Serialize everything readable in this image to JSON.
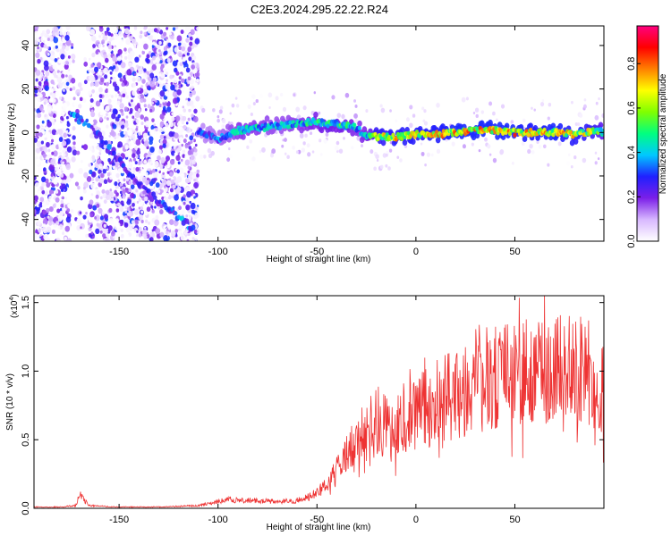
{
  "title": "C2E3.2024.295.22.22.R24",
  "chart_data": [
    {
      "type": "heatmap",
      "xlabel": "Height of straight line (km)",
      "ylabel": "Frequency (Hz)",
      "xlim": [
        -193,
        95
      ],
      "ylim": [
        -50,
        49
      ],
      "xticks": [
        -150,
        -100,
        -50,
        0,
        50
      ],
      "yticks": [
        -40,
        -20,
        0,
        20,
        40
      ],
      "colorbar": {
        "label": "Normalized spectral amplitude",
        "range": [
          0,
          0.97
        ],
        "ticks": [
          0.0,
          0.2,
          0.4,
          0.6,
          0.8
        ],
        "colors": [
          "#ffffff",
          "#d8b8ff",
          "#7b1fe8",
          "#2020ff",
          "#00c8ff",
          "#00ff80",
          "#80ff00",
          "#ffff00",
          "#ff8000",
          "#ff0000",
          "#ff0080"
        ]
      },
      "ridge": {
        "x": [
          -110,
          -100,
          -95,
          -90,
          -80,
          -70,
          -60,
          -50,
          -45,
          -40,
          -35,
          -30,
          -25,
          -20,
          -10,
          0,
          10,
          20,
          30,
          40,
          50,
          60,
          70,
          80,
          90,
          95
        ],
        "y": [
          1,
          -3,
          -1,
          1,
          2,
          3,
          4,
          5,
          4,
          4,
          3,
          2,
          -2,
          -2,
          -2,
          -1,
          -1,
          0,
          1,
          1,
          0,
          0,
          0,
          -1,
          1,
          0
        ],
        "amplitude": [
          0.35,
          0.4,
          0.45,
          0.5,
          0.5,
          0.45,
          0.5,
          0.55,
          0.6,
          0.55,
          0.6,
          0.5,
          0.55,
          0.75,
          0.8,
          0.8,
          0.82,
          0.85,
          0.85,
          0.85,
          0.85,
          0.82,
          0.85,
          0.8,
          0.75,
          0.6
        ]
      },
      "diagonal_streak": {
        "x": [
          -175,
          -165,
          -155,
          -145,
          -135,
          -125,
          -118,
          -112
        ],
        "y": [
          8,
          4,
          -8,
          -18,
          -28,
          -35,
          -41,
          -44
        ],
        "amplitude": [
          0.35,
          0.3,
          0.3,
          0.25,
          0.25,
          0.3,
          0.35,
          0.35
        ]
      }
    },
    {
      "type": "line",
      "xlabel": "Height of straight line (km)",
      "ylabel": "SNR (10 * v/v)",
      "y_multiplier": "(x10",
      "y_multiplier_exp": "4",
      "xlim": [
        -193,
        95
      ],
      "ylim": [
        0,
        1.55
      ],
      "xticks": [
        -150,
        -100,
        -50,
        0,
        50
      ],
      "yticks": [
        0.0,
        0.5,
        1.0,
        1.5
      ],
      "series": [
        {
          "color": "#ee3333",
          "x": [
            -193,
            -180,
            -172,
            -170,
            -165,
            -150,
            -130,
            -110,
            -100,
            -95,
            -90,
            -80,
            -70,
            -60,
            -55,
            -50,
            -45,
            -40,
            -35,
            -30,
            -25,
            -20,
            -15,
            -10,
            -5,
            0,
            5,
            10,
            15,
            20,
            25,
            30,
            35,
            40,
            45,
            50,
            55,
            60,
            65,
            70,
            75,
            80,
            85,
            90,
            95
          ],
          "y": [
            0.01,
            0.01,
            0.02,
            0.1,
            0.02,
            0.01,
            0.01,
            0.02,
            0.05,
            0.07,
            0.06,
            0.06,
            0.05,
            0.06,
            0.08,
            0.12,
            0.18,
            0.28,
            0.38,
            0.48,
            0.58,
            0.68,
            0.62,
            0.62,
            0.7,
            0.72,
            0.75,
            0.8,
            0.85,
            0.85,
            0.88,
            0.92,
            0.95,
            0.98,
            1.0,
            1.02,
            1.05,
            1.08,
            1.08,
            1.06,
            1.05,
            1.03,
            1.0,
            0.95,
            0.92
          ]
        }
      ]
    }
  ]
}
